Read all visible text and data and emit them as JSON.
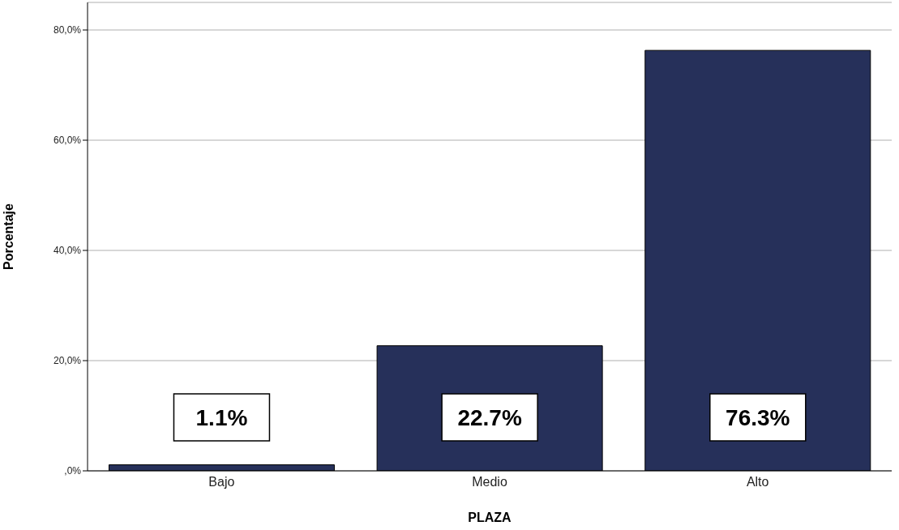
{
  "chart_data": {
    "type": "bar",
    "xlabel": "PLAZA",
    "ylabel": "Porcentaje",
    "categories": [
      "Bajo",
      "Medio",
      "Alto"
    ],
    "values": [
      1.1,
      22.7,
      76.3
    ],
    "value_labels": [
      "1.1%",
      "22.7%",
      "76.3%"
    ],
    "color": "#26305a",
    "ylim": [
      0,
      85
    ],
    "yticks": [
      {
        "value": 0,
        "label": ",0%"
      },
      {
        "value": 20,
        "label": "20,0%"
      },
      {
        "value": 40,
        "label": "40,0%"
      },
      {
        "value": 60,
        "label": "60,0%"
      },
      {
        "value": 80,
        "label": "80,0%"
      }
    ],
    "grid": "y",
    "legend": false
  }
}
